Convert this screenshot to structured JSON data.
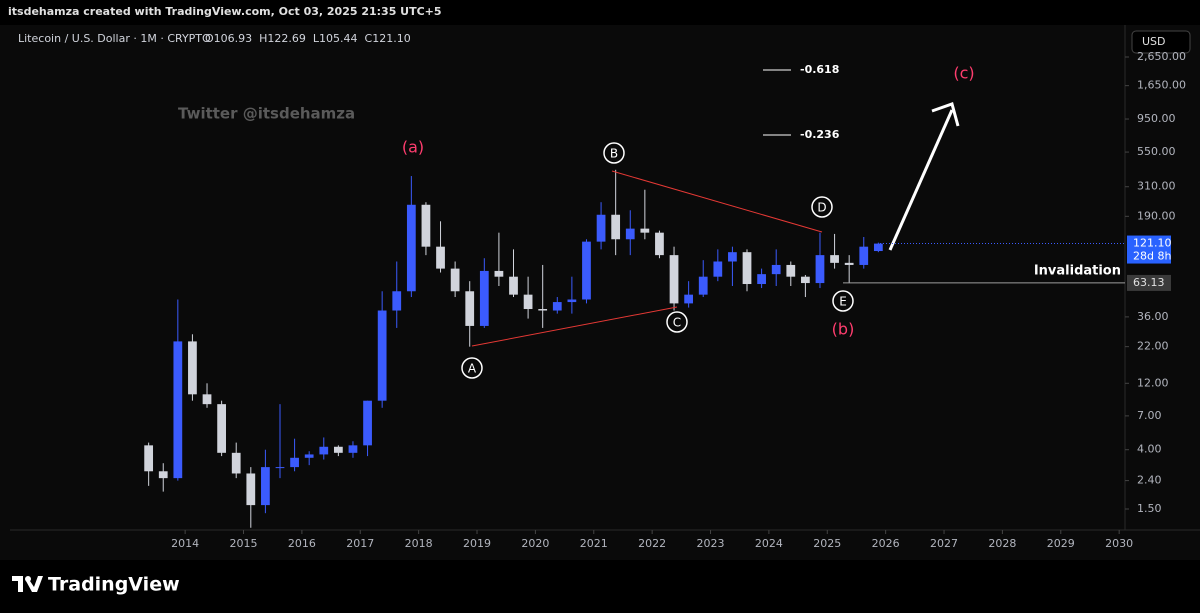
{
  "header": {
    "text": "itsdehamza created with TradingView.com, Oct 03, 2025 21:35 UTC+5",
    "brand": "TradingView"
  },
  "chart_data": {
    "type": "candlestick",
    "title": "Litecoin / U.S. Dollar · 1M · CRYPTO",
    "legend_values": [
      "O106.93",
      "H122.69",
      "L105.44",
      "C121.10"
    ],
    "currency": "USD",
    "watermark": "Twitter @itsdehamza",
    "log_scale": true,
    "up_color": "#3b5bfd",
    "down_color": "#d1d4dc",
    "x": [
      2013.375,
      2013.625,
      2013.875,
      2014.125,
      2014.375,
      2014.625,
      2014.875,
      2015.125,
      2015.375,
      2015.625,
      2015.875,
      2016.125,
      2016.375,
      2016.625,
      2016.875,
      2017.125,
      2017.375,
      2017.625,
      2017.875,
      2018.125,
      2018.375,
      2018.625,
      2018.875,
      2019.125,
      2019.375,
      2019.625,
      2019.875,
      2020.125,
      2020.375,
      2020.625,
      2020.875,
      2021.125,
      2021.375,
      2021.625,
      2021.875,
      2022.125,
      2022.375,
      2022.625,
      2022.875,
      2023.125,
      2023.375,
      2023.625,
      2023.875,
      2024.125,
      2024.375,
      2024.625,
      2024.875,
      2025.125,
      2025.375,
      2025.625,
      2025.875
    ],
    "open": [
      4.3,
      2.8,
      2.5,
      24,
      10,
      8.5,
      3.8,
      2.7,
      1.6,
      3,
      3,
      3.5,
      3.7,
      4.2,
      3.8,
      4.3,
      9,
      40,
      55,
      230,
      115,
      80,
      55,
      31,
      77,
      70,
      52,
      41,
      40,
      46,
      48,
      125,
      195,
      130,
      155,
      145,
      100,
      45,
      52,
      70,
      90,
      105,
      62,
      73,
      85,
      70,
      63,
      100,
      88,
      85,
      107
    ],
    "high": [
      4.5,
      3.2,
      48,
      27,
      12,
      9,
      4.5,
      3.0,
      4,
      8.5,
      4.8,
      3.9,
      4.9,
      4.3,
      4.6,
      9,
      55,
      90,
      370,
      240,
      175,
      90,
      65,
      95,
      145,
      110,
      70,
      85,
      50,
      70,
      130,
      240,
      410,
      210,
      295,
      150,
      115,
      65,
      92,
      110,
      115,
      110,
      80,
      110,
      90,
      72,
      145,
      142,
      100,
      135,
      123
    ],
    "low": [
      2.2,
      2.0,
      2.4,
      9,
      8,
      3.6,
      2.5,
      1.1,
      1.4,
      2.5,
      2.8,
      3.1,
      3.4,
      3.6,
      3.5,
      3.6,
      8,
      30,
      50,
      100,
      75,
      50,
      22,
      30,
      60,
      50,
      35,
      30,
      38,
      38,
      45,
      110,
      100,
      100,
      130,
      95,
      40,
      42,
      50,
      65,
      60,
      55,
      58,
      60,
      60,
      50,
      58,
      80,
      63,
      80,
      105
    ],
    "close": [
      2.8,
      2.5,
      24,
      10,
      8.5,
      3.8,
      2.7,
      1.6,
      3,
      3.0,
      3.5,
      3.7,
      4.2,
      3.8,
      4.3,
      9,
      40,
      55,
      230,
      115,
      80,
      55,
      31,
      77,
      70,
      52,
      41,
      40,
      46,
      48,
      125,
      195,
      130,
      155,
      145,
      100,
      45,
      52,
      70,
      90,
      105,
      62,
      73,
      85,
      70,
      63,
      100,
      88,
      85,
      115,
      121
    ],
    "xlim": [
      2011.0,
      2030.1
    ],
    "xticks": [
      2014,
      2015,
      2016,
      2017,
      2018,
      2019,
      2020,
      2021,
      2022,
      2023,
      2024,
      2025,
      2026,
      2027,
      2028,
      2029,
      2030
    ],
    "ylim": [
      1.06,
      4500
    ],
    "yticks": [
      {
        "value": 1.5,
        "label": "1.50"
      },
      {
        "value": 2.4,
        "label": "2.40"
      },
      {
        "value": 4,
        "label": "4.00"
      },
      {
        "value": 7,
        "label": "7.00"
      },
      {
        "value": 12,
        "label": "12.00"
      },
      {
        "value": 22,
        "label": "22.00"
      },
      {
        "value": 36,
        "label": "36.00"
      },
      {
        "value": 190,
        "label": "190.00"
      },
      {
        "value": 310,
        "label": "310.00"
      },
      {
        "value": 550,
        "label": "550.00"
      },
      {
        "value": 950,
        "label": "950.00"
      },
      {
        "value": 1650,
        "label": "1,650.00"
      },
      {
        "value": 2650,
        "label": "2,650.00"
      }
    ],
    "last_price": {
      "value": 121.1,
      "label": "121.10",
      "countdown": "28d 8h"
    },
    "invalidation": {
      "value": 63.13,
      "label": "63.13",
      "text": "Invalidation"
    },
    "annotations": {
      "a": "(a)",
      "b": "(b)",
      "c": "(c)",
      "A": "A",
      "B": "B",
      "C": "C",
      "D": "D",
      "E": "E",
      "fib1": "-0.618",
      "fib2": "-0.236"
    }
  }
}
